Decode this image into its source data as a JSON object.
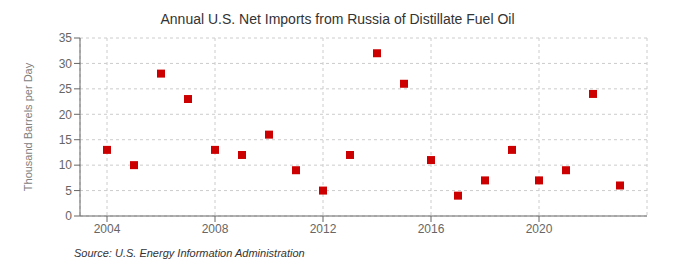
{
  "chart_data": {
    "type": "scatter",
    "title": "Annual U.S. Net Imports from Russia of Distillate Fuel Oil",
    "y_label": "Thousand Barrels per Day",
    "annotation": "Source: U.S. Energy Information Administration",
    "x": [
      2004,
      2005,
      2006,
      2007,
      2008,
      2009,
      2010,
      2011,
      2012,
      2013,
      2014,
      2015,
      2016,
      2017,
      2018,
      2019,
      2020,
      2021,
      2022,
      2023
    ],
    "values": [
      13,
      10,
      28,
      23,
      13,
      12,
      16,
      9,
      5,
      12,
      32,
      26,
      11,
      4,
      7,
      13,
      7,
      9,
      24,
      6
    ],
    "color": "#cc0000",
    "marker": "square",
    "xlim": [
      2003.0,
      2024.0
    ],
    "ylim": [
      0,
      35
    ],
    "xticks": [
      2004,
      2008,
      2012,
      2016,
      2020
    ],
    "yticks": [
      0,
      5,
      10,
      15,
      20,
      25,
      30,
      35
    ],
    "grid": true
  }
}
